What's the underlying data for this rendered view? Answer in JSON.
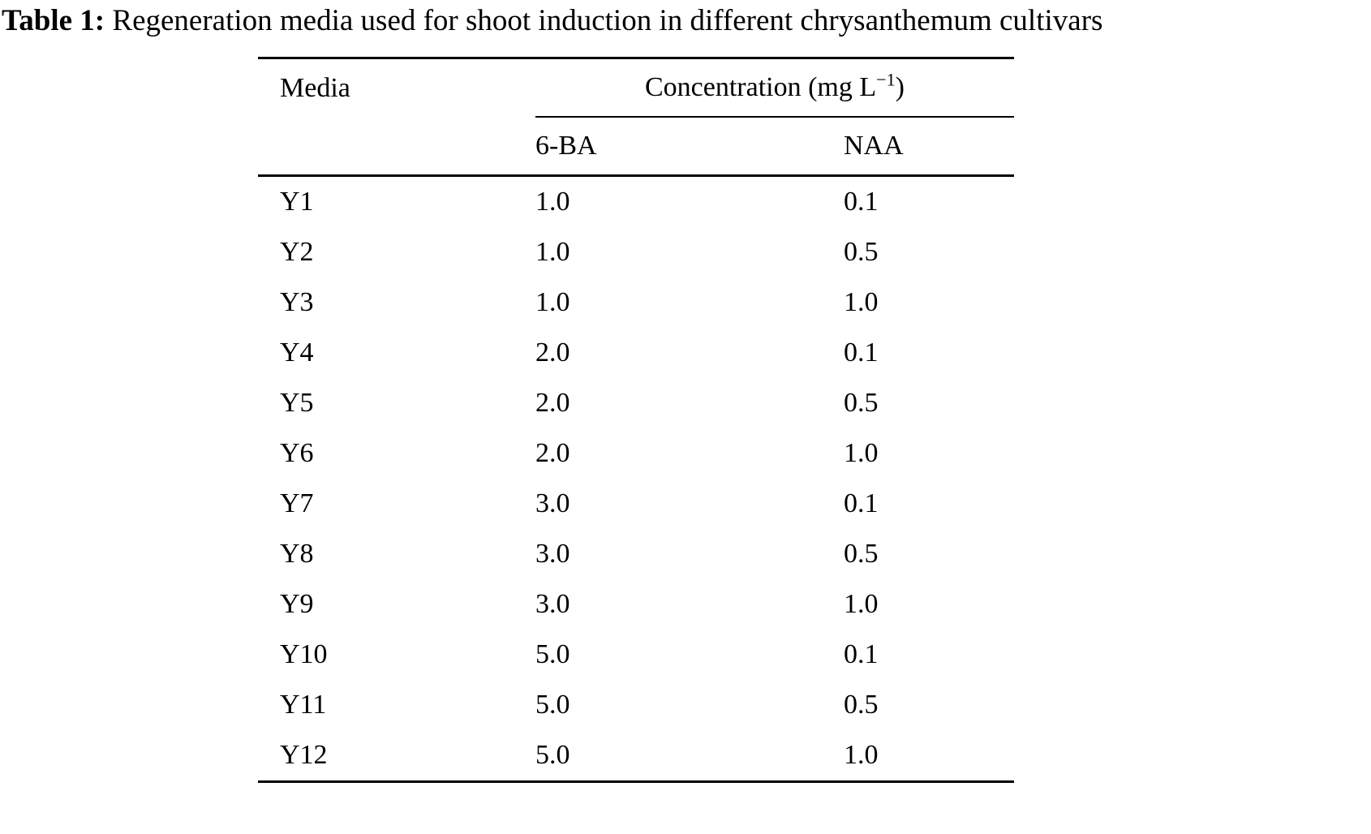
{
  "caption": {
    "label": "Table 1:",
    "text": "Regeneration media used for shoot induction in different chrysanthemum cultivars"
  },
  "table": {
    "header": {
      "media": "Media",
      "concentration": {
        "prefix": "Concentration (mg L",
        "sup": "−1",
        "suffix": ")"
      },
      "ba": "6-BA",
      "naa": "NAA"
    },
    "rows": [
      {
        "media": "Y1",
        "ba": "1.0",
        "naa": "0.1"
      },
      {
        "media": "Y2",
        "ba": "1.0",
        "naa": "0.5"
      },
      {
        "media": "Y3",
        "ba": "1.0",
        "naa": "1.0"
      },
      {
        "media": "Y4",
        "ba": "2.0",
        "naa": "0.1"
      },
      {
        "media": "Y5",
        "ba": "2.0",
        "naa": "0.5"
      },
      {
        "media": "Y6",
        "ba": "2.0",
        "naa": "1.0"
      },
      {
        "media": "Y7",
        "ba": "3.0",
        "naa": "0.1"
      },
      {
        "media": "Y8",
        "ba": "3.0",
        "naa": "0.5"
      },
      {
        "media": "Y9",
        "ba": "3.0",
        "naa": "1.0"
      },
      {
        "media": "Y10",
        "ba": "5.0",
        "naa": "0.1"
      },
      {
        "media": "Y11",
        "ba": "5.0",
        "naa": "0.5"
      },
      {
        "media": "Y12",
        "ba": "5.0",
        "naa": "1.0"
      }
    ]
  },
  "chart_data": {
    "type": "table",
    "title": "Table 1: Regeneration media used for shoot induction in different chrysanthemum cultivars",
    "columns": [
      "Media",
      "6-BA (mg L-1)",
      "NAA (mg L-1)"
    ],
    "rows": [
      [
        "Y1",
        1.0,
        0.1
      ],
      [
        "Y2",
        1.0,
        0.5
      ],
      [
        "Y3",
        1.0,
        1.0
      ],
      [
        "Y4",
        2.0,
        0.1
      ],
      [
        "Y5",
        2.0,
        0.5
      ],
      [
        "Y6",
        2.0,
        1.0
      ],
      [
        "Y7",
        3.0,
        0.1
      ],
      [
        "Y8",
        3.0,
        0.5
      ],
      [
        "Y9",
        3.0,
        1.0
      ],
      [
        "Y10",
        5.0,
        0.1
      ],
      [
        "Y11",
        5.0,
        0.5
      ],
      [
        "Y12",
        5.0,
        1.0
      ]
    ]
  },
  "colors": {
    "text": "#000000",
    "background": "#ffffff",
    "rule": "#000000"
  }
}
